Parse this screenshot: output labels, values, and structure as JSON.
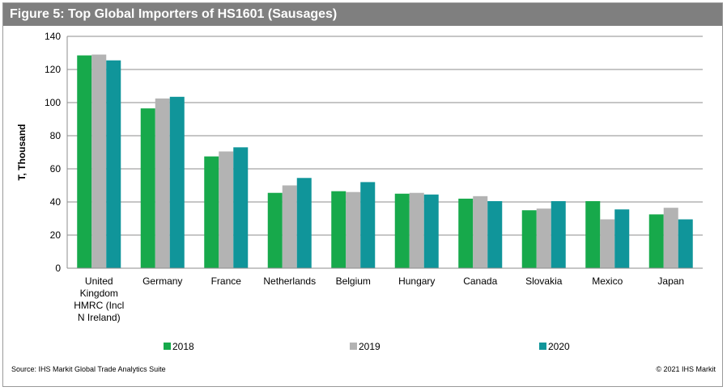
{
  "header": {
    "title": "Figure 5: Top Global Importers of HS1601 (Sausages)"
  },
  "footer": {
    "source": "Source: IHS Markit Global Trade Analytics Suite",
    "copyright": "© 2021 IHS Markit"
  },
  "chart_data": {
    "type": "bar",
    "title": "Figure 5: Top Global Importers of HS1601 (Sausages)",
    "xlabel": "",
    "ylabel": "T, Thousand",
    "ylim": [
      0,
      140
    ],
    "yticks": [
      0,
      20,
      40,
      60,
      80,
      100,
      120,
      140
    ],
    "grid": true,
    "legend_position": "bottom",
    "categories": [
      [
        "United",
        "Kingdom",
        "HMRC (Incl",
        "N Ireland)"
      ],
      [
        "Germany"
      ],
      [
        "France"
      ],
      [
        "Netherlands"
      ],
      [
        "Belgium"
      ],
      [
        "Hungary"
      ],
      [
        "Canada"
      ],
      [
        "Slovakia"
      ],
      [
        "Mexico"
      ],
      [
        "Japan"
      ]
    ],
    "series": [
      {
        "name": "2018",
        "color": "#17a94b",
        "values": [
          128.5,
          96.5,
          67.5,
          45.5,
          46.5,
          45,
          42,
          35,
          40.5,
          32.5
        ]
      },
      {
        "name": "2019",
        "color": "#b3b3b3",
        "values": [
          129,
          102.5,
          70.5,
          50,
          46,
          45.5,
          43.5,
          36,
          29.5,
          36.5
        ]
      },
      {
        "name": "2020",
        "color": "#10959a",
        "values": [
          125.5,
          103.5,
          73,
          54.5,
          52,
          44.5,
          40.5,
          40.5,
          35.5,
          29.5
        ]
      }
    ]
  }
}
